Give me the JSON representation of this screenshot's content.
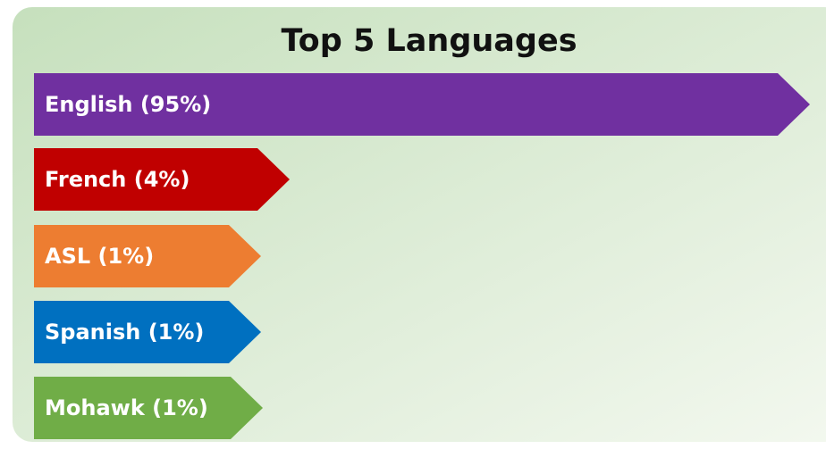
{
  "title": "Top 5 Languages",
  "items": [
    {
      "label": "English (95%)",
      "color": "#7030a0"
    },
    {
      "label": "French (4%)",
      "color": "#c00000"
    },
    {
      "label": "ASL (1%)",
      "color": "#ed7d31"
    },
    {
      "label": "Spanish (1%)",
      "color": "#0070c0"
    },
    {
      "label": "Mohawk (1%)",
      "color": "#70ad47"
    }
  ]
}
